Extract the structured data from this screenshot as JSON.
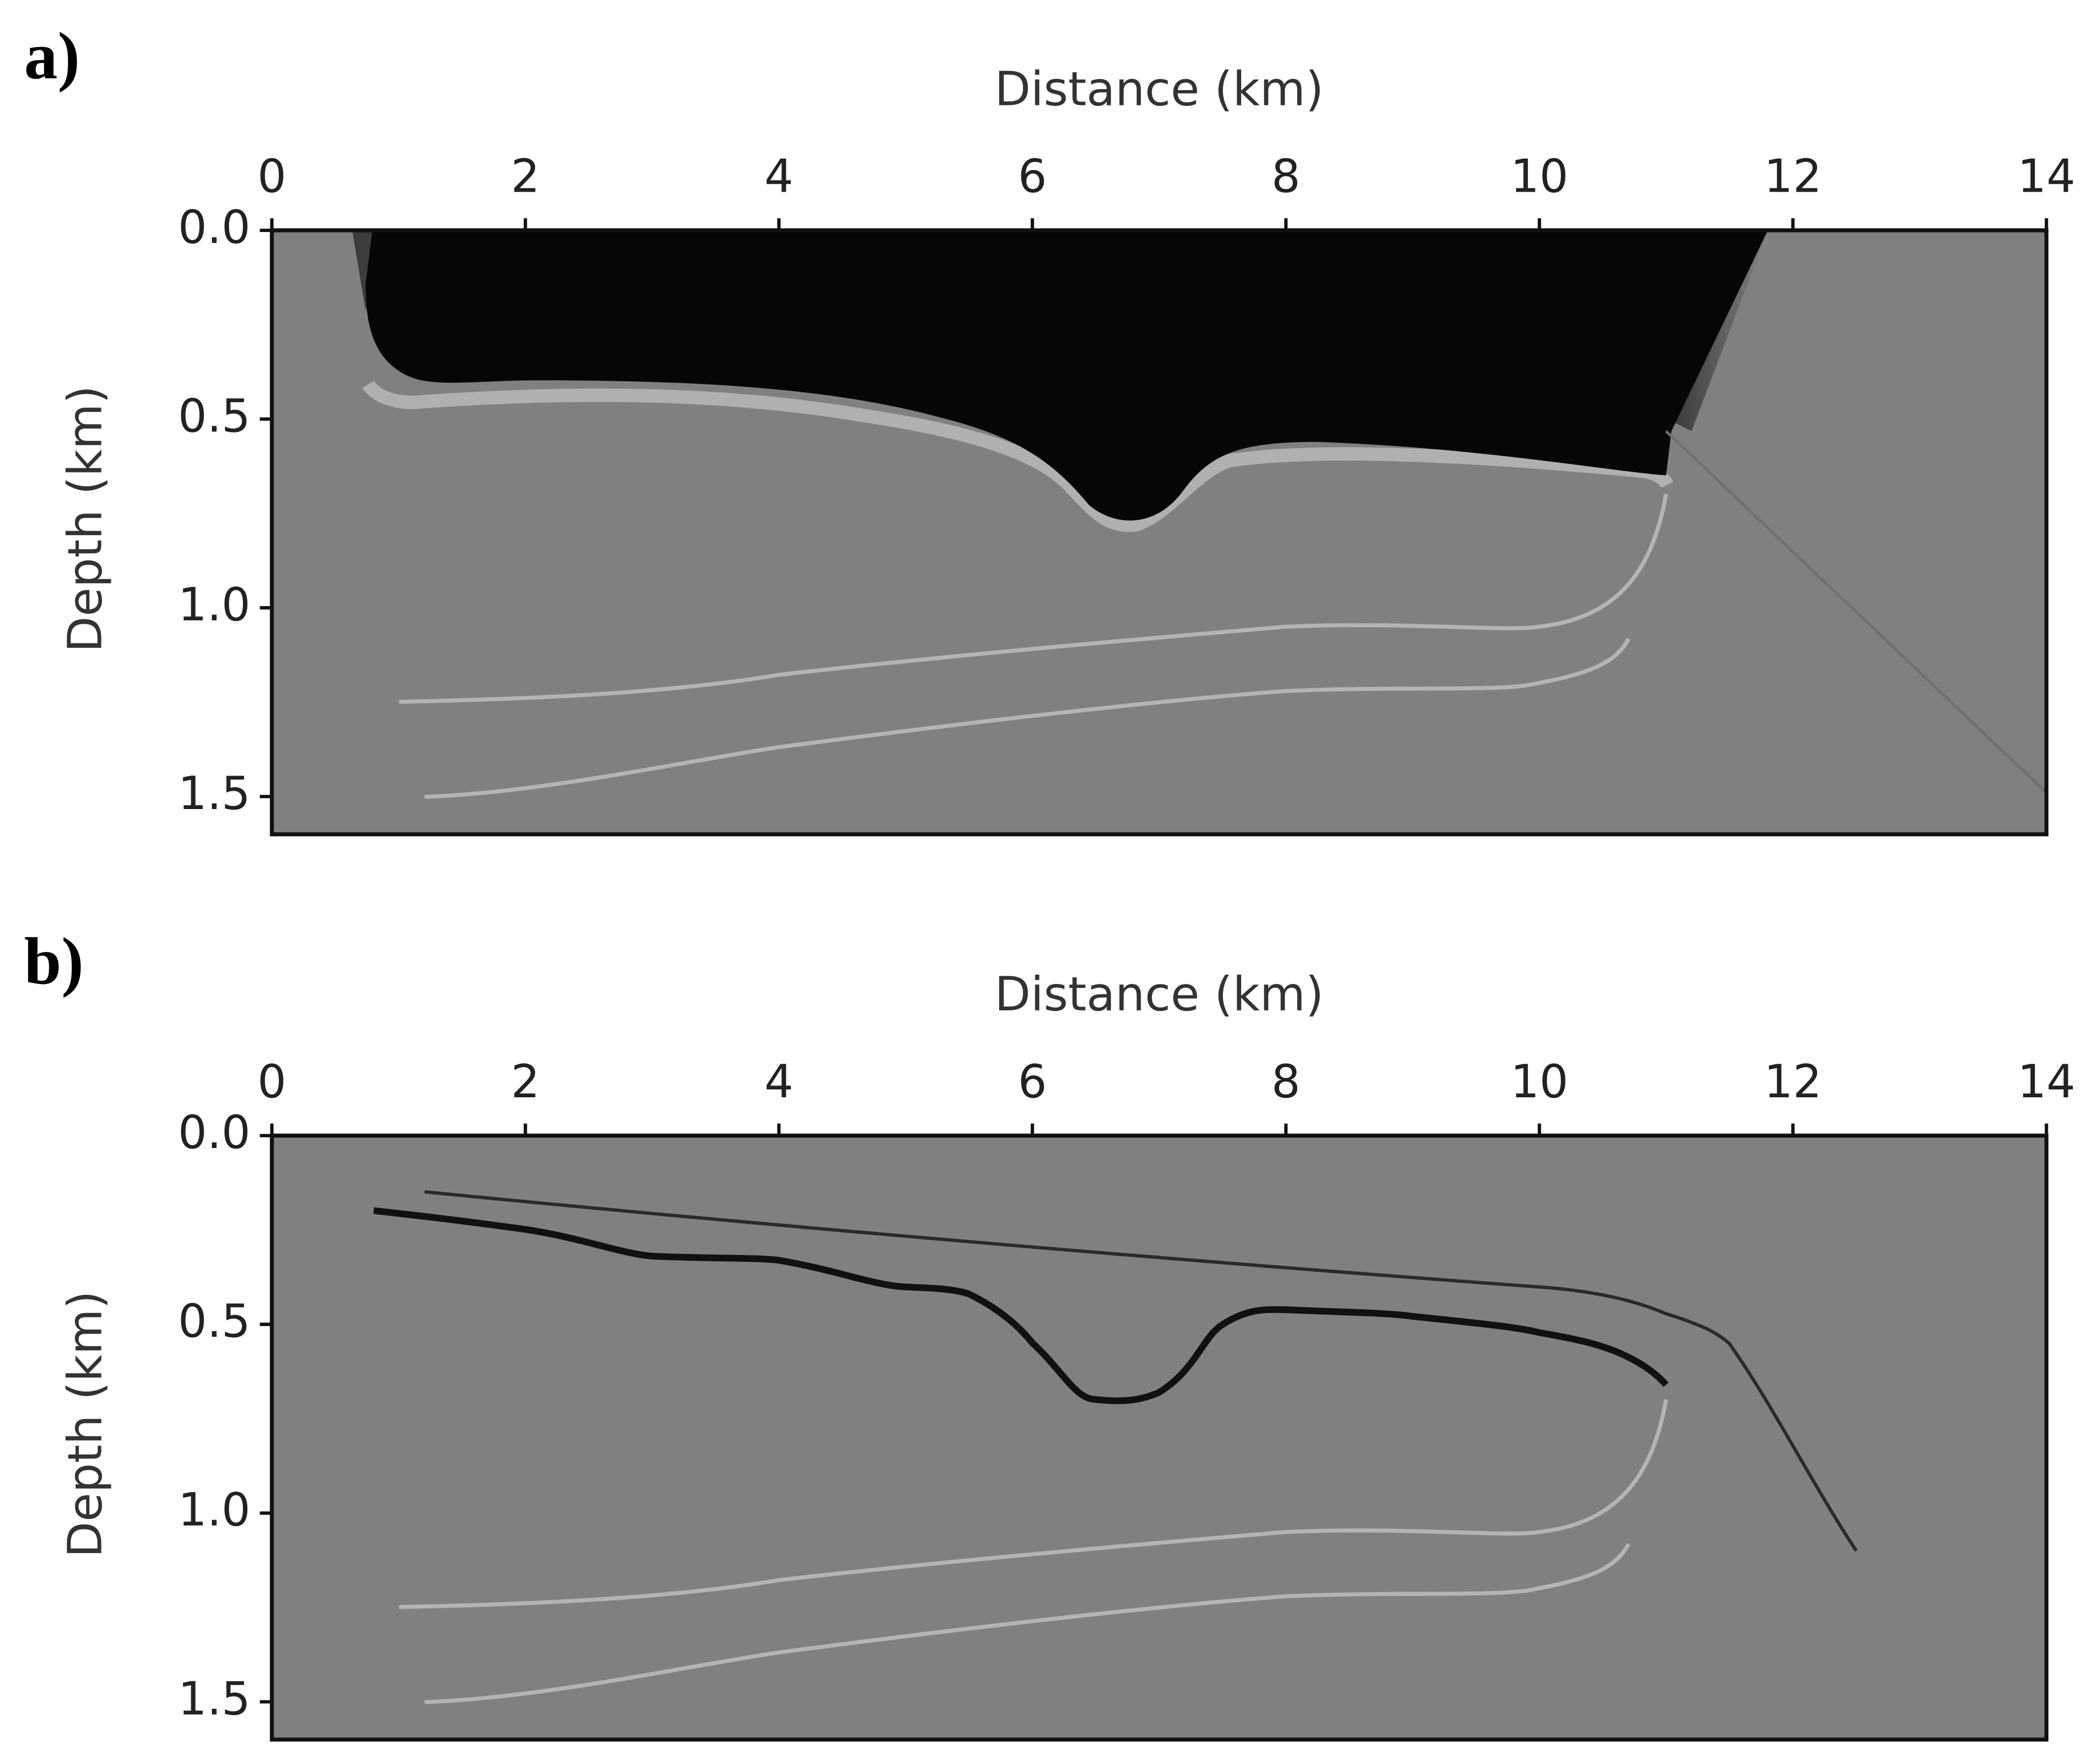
{
  "chart_data": [
    {
      "type": "image",
      "panel_label": "a)",
      "xlabel": "Distance (km)",
      "ylabel": "Depth (km)",
      "xlim": [
        0,
        14
      ],
      "xticks": [
        0,
        2,
        4,
        6,
        8,
        10,
        12,
        14
      ],
      "ylim": [
        0,
        1.6
      ],
      "invert_y": true,
      "yticks": [
        {
          "value": 0,
          "label": "0.0"
        },
        {
          "value": 0.5,
          "label": "0.5"
        },
        {
          "value": 1,
          "label": "1.0"
        },
        {
          "value": 1.5,
          "label": "1.5"
        }
      ]
    },
    {
      "type": "image",
      "panel_label": "b)",
      "xlabel": "Distance (km)",
      "ylabel": "Depth (km)",
      "xlim": [
        0,
        14
      ],
      "xticks": [
        0,
        2,
        4,
        6,
        8,
        10,
        12,
        14
      ],
      "ylim": [
        0,
        1.6
      ],
      "invert_y": true,
      "yticks": [
        {
          "value": 0,
          "label": "0.0"
        },
        {
          "value": 0.5,
          "label": "0.5"
        },
        {
          "value": 1,
          "label": "1.0"
        },
        {
          "value": 1.5,
          "label": "1.5"
        }
      ]
    }
  ]
}
